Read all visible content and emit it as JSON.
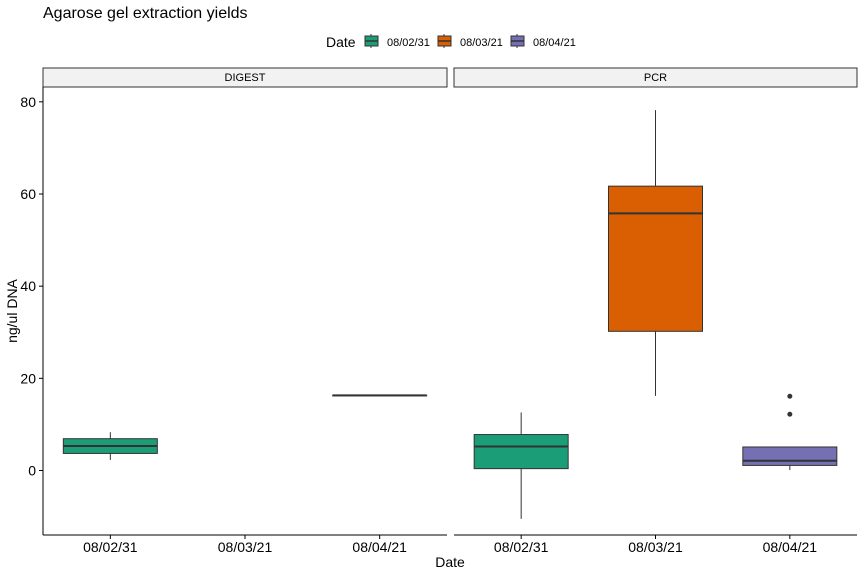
{
  "chart_data": {
    "type": "boxplot",
    "title": "Agarose gel extraction yields",
    "xlabel": "Date",
    "ylabel": "ng/ul DNA",
    "ylim": [
      -14,
      83
    ],
    "yticks": [
      0,
      20,
      40,
      60,
      80
    ],
    "categories": [
      "08/02/31",
      "08/03/21",
      "08/04/21"
    ],
    "legend": {
      "title": "Date",
      "position": "top",
      "entries": [
        {
          "label": "08/02/31",
          "color": "#1b9e77"
        },
        {
          "label": "08/03/21",
          "color": "#d95f02"
        },
        {
          "label": "08/04/21",
          "color": "#7570b3"
        }
      ]
    },
    "panels": [
      {
        "label": "DIGEST",
        "boxes": [
          {
            "category": "08/02/31",
            "min": 2.3,
            "q1": 3.7,
            "median": 5.3,
            "q3": 6.9,
            "max": 8.3,
            "outliers": []
          },
          {
            "category": "08/04/21",
            "min": 16.3,
            "q1": 16.3,
            "median": 16.3,
            "q3": 16.3,
            "max": 16.3,
            "outliers": []
          }
        ]
      },
      {
        "label": "PCR",
        "boxes": [
          {
            "category": "08/02/31",
            "min": -10.5,
            "q1": 0.4,
            "median": 5.2,
            "q3": 7.8,
            "max": 12.6,
            "outliers": []
          },
          {
            "category": "08/03/21",
            "min": 16.2,
            "q1": 30.2,
            "median": 55.8,
            "q3": 61.7,
            "max": 78.2,
            "outliers": []
          },
          {
            "category": "08/04/21",
            "min": 0.1,
            "q1": 1.1,
            "median": 2.1,
            "q3": 5.1,
            "max": 5.1,
            "outliers": [
              12.2,
              16.1
            ]
          }
        ]
      }
    ]
  }
}
